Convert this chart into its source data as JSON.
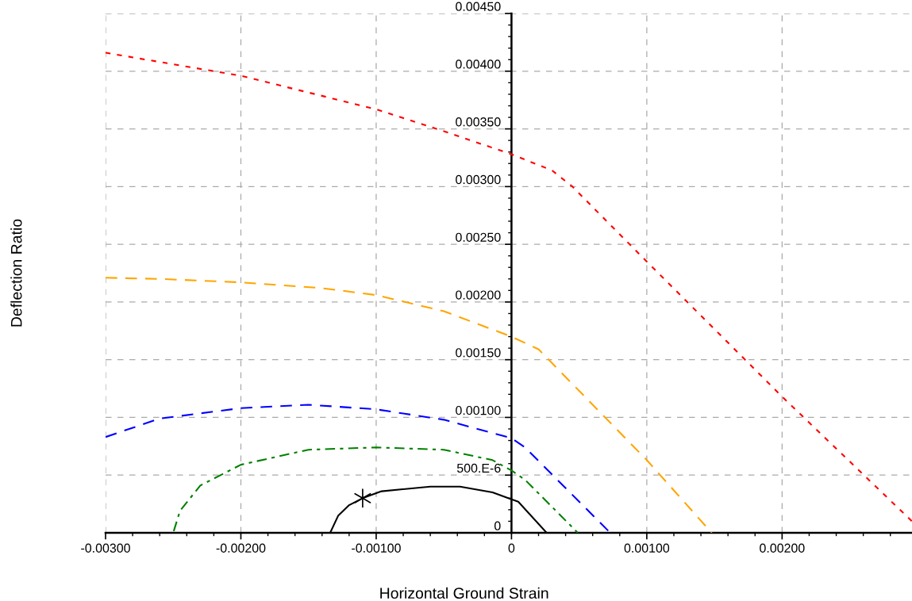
{
  "chart_data": {
    "type": "line",
    "xlabel": "Horizontal Ground Strain",
    "ylabel": "Deflection Ratio",
    "xlim": [
      -0.003,
      0.00296
    ],
    "ylim": [
      0,
      0.0045
    ],
    "xticks": [
      {
        "value": -0.003,
        "label": "-0.00300"
      },
      {
        "value": -0.002,
        "label": "-0.00200"
      },
      {
        "value": -0.001,
        "label": "-0.00100"
      },
      0,
      {
        "value": 0.001,
        "label": "0.00100"
      },
      {
        "value": 0.002,
        "label": "0.00200"
      }
    ],
    "yticks": [
      0,
      {
        "value": 0.0005,
        "label": "500.E-6"
      },
      {
        "value": 0.001,
        "label": "0.00100"
      },
      {
        "value": 0.0015,
        "label": "0.00150"
      },
      {
        "value": 0.002,
        "label": "0.00200"
      },
      {
        "value": 0.0025,
        "label": "0.00250"
      },
      {
        "value": 0.003,
        "label": "0.00300"
      },
      {
        "value": 0.0035,
        "label": "0.00350"
      },
      {
        "value": 0.004,
        "label": "0.00400"
      },
      {
        "value": 0.0045,
        "label": "0.00450"
      }
    ],
    "grid": true,
    "series": [
      {
        "color": "#ff0000",
        "line_style": "dotted",
        "x": [
          -0.003,
          -0.002,
          -0.001,
          -0.0005,
          0,
          0.0003,
          0.00045,
          0.001,
          0.002,
          0.00296
        ],
        "values": [
          0.00416,
          0.00396,
          0.00367,
          0.00348,
          0.00328,
          0.00314,
          0.003,
          0.00235,
          0.00118,
          0.0001
        ]
      },
      {
        "color": "#ffa500",
        "line_style": "dashed",
        "x": [
          -0.003,
          -0.0026,
          -0.002,
          -0.0014,
          -0.001,
          -0.0005,
          0,
          0.0002,
          0.001,
          0.00148
        ],
        "values": [
          0.00221,
          0.0022,
          0.00217,
          0.00212,
          0.00206,
          0.00192,
          0.0017,
          0.00159,
          0.00063,
          0
        ]
      },
      {
        "color": "#0000ff",
        "line_style": "dashed",
        "x": [
          -0.003,
          -0.0026,
          -0.002,
          -0.0015,
          -0.001,
          -0.0005,
          0,
          0.0001,
          0.00073
        ],
        "values": [
          0.00083,
          0.00099,
          0.00108,
          0.00111,
          0.00107,
          0.00098,
          0.00082,
          0.00074,
          0
        ]
      },
      {
        "color": "#008000",
        "line_style": "dashdot",
        "x": [
          -0.003,
          -0.0025,
          -0.00245,
          -0.0023,
          -0.002,
          -0.0015,
          -0.001,
          -0.0005,
          -0.00014,
          0,
          0.0001,
          0.00049
        ],
        "values": [
          0,
          0,
          0.00019,
          0.00041,
          0.00059,
          0.00072,
          0.00074,
          0.00072,
          0.00063,
          0.00054,
          0.00046,
          0
        ]
      },
      {
        "color": "#000000",
        "line_style": "solid",
        "x": [
          -0.003,
          -0.00134,
          -0.00128,
          -0.0012,
          -0.0011,
          -0.00096,
          -0.0006,
          -0.00038,
          -0.00014,
          0,
          5e-05,
          0.00026
        ],
        "values": [
          0,
          0,
          0.00015,
          0.00024,
          0.0003,
          0.00036,
          0.0004,
          0.0004,
          0.00035,
          0.00029,
          0.00027,
          0
        ]
      },
      {
        "type": "scatter",
        "color": "#000000",
        "marker": "cross",
        "x": [
          -0.0011
        ],
        "values": [
          0.0003
        ]
      }
    ]
  }
}
